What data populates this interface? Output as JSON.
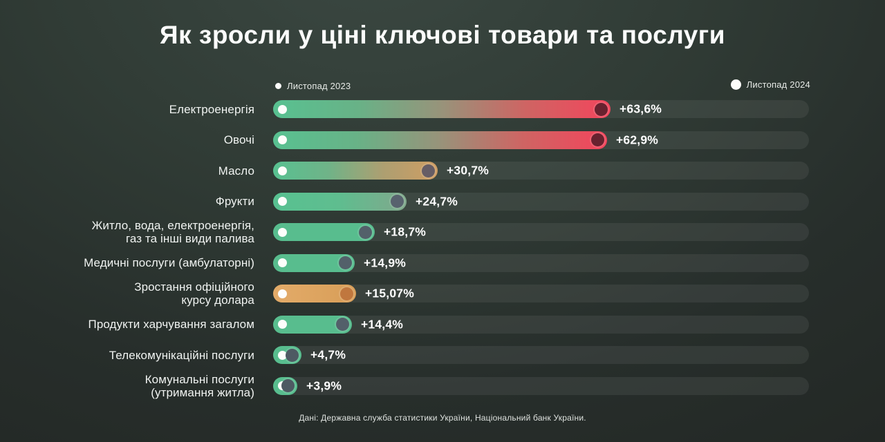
{
  "title": "Як зросли у ціні ключові товари та послуги",
  "legend": {
    "left": {
      "label": "Листопад 2023"
    },
    "right": {
      "label": "Листопад 2024"
    }
  },
  "footer": "Дані: Державна служба статистики України, Національний банк України.",
  "colors": {
    "background_center": "#3b4842",
    "background_edge": "#232825",
    "track": "rgba(255,255,255,0.065)",
    "green": "#58bd8e",
    "red": "#f3455c",
    "orange": "#e3ab69",
    "marker_2023": "#fdfdfb"
  },
  "chart_data": {
    "type": "bar",
    "orientation": "horizontal",
    "title": "Як зросли у ціні ключові товари та послуги",
    "legend": [
      "Листопад 2023",
      "Листопад 2024"
    ],
    "legend_position": "top",
    "grid": false,
    "unit": "percent",
    "xlim": [
      0,
      100
    ],
    "source": "Дані: Державна служба статистики України, Національний банк України.",
    "categories": [
      "Електроенергія",
      "Овочі",
      "Масло",
      "Фрукти",
      "Житло, вода, електроенергія,\nгаз та інші види палива",
      "Медичні послуги (амбулаторні)",
      "Зростання офіційного\nкурсу долара",
      "Продукти харчування загалом",
      "Телекомунікаційні послуги",
      "Комунальні послуги\n(утримання житла)"
    ],
    "values": [
      63.6,
      62.9,
      30.7,
      24.7,
      18.7,
      14.9,
      15.07,
      14.4,
      4.7,
      3.9
    ],
    "value_labels": [
      "+63,6%",
      "+62,9%",
      "+30,7%",
      "+24,7%",
      "+18,7%",
      "+14,9%",
      "+15,07%",
      "+14,4%",
      "+4,7%",
      "+3,9%"
    ],
    "bar_colors": [
      [
        "#58c191",
        "#68b287",
        "#98937a",
        "#cf6463",
        "#f3455c"
      ],
      [
        "#58c191",
        "#68b287",
        "#98937a",
        "#cf6463",
        "#f3455c"
      ],
      [
        "#58c191",
        "#6fb388",
        "#ad9f71",
        "#cf9d63"
      ],
      [
        "#58c191",
        "#5fbd8f",
        "#81a88c"
      ],
      [
        "#58bd8e"
      ],
      [
        "#58bd8e"
      ],
      [
        "#e3ab69",
        "#d89e58"
      ],
      [
        "#58bd8e"
      ],
      [
        "#58bd8e"
      ],
      [
        "#58bd8e"
      ]
    ],
    "end_dot_colors": [
      "#68222f",
      "#68222f",
      "#665d65",
      "#58626e",
      "#53606a",
      "#53606a",
      "#c0773e",
      "#53606a",
      "#4e5a63",
      "#4e5a63"
    ]
  }
}
